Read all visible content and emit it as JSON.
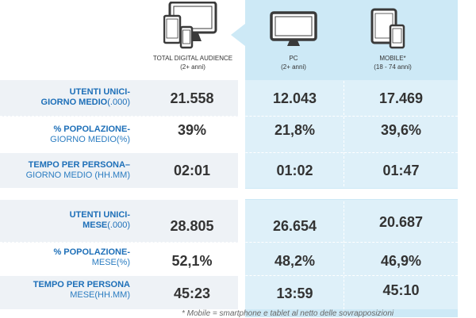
{
  "columns": {
    "total": {
      "title": "TOTAL DIGITAL AUDIENCE",
      "subtitle": "(2+ anni)"
    },
    "pc": {
      "title": "PC",
      "subtitle": "(2+ anni)"
    },
    "mobile": {
      "title": "MOBILE*",
      "subtitle": "(18 - 74 anni)"
    }
  },
  "rows": [
    {
      "label_line1": "UTENTI UNICI-",
      "label_line2": "GIORNO MEDIO",
      "label_suffix": "(.000)",
      "total": "21.558",
      "pc": "12.043",
      "mobile": "17.469"
    },
    {
      "label_line1": "% POPOLAZIONE-",
      "label_line2": "GIORNO MEDIO(%)",
      "label_suffix": "",
      "total": "39%",
      "pc": "21,8%",
      "mobile": "39,6%"
    },
    {
      "label_line1": "TEMPO PER PERSONA–",
      "label_line2": "GIORNO MEDIO (HH.MM)",
      "label_suffix": "",
      "total": "02:01",
      "pc": "01:02",
      "mobile": "01:47"
    },
    {
      "label_line1": "UTENTI UNICI-",
      "label_line2": "MESE",
      "label_suffix": "(.000)",
      "total": "28.805",
      "pc": "26.654",
      "mobile": "20.687"
    },
    {
      "label_line1": "% POPOLAZIONE-",
      "label_line2": "MESE(%)",
      "label_suffix": "",
      "total": "52,1%",
      "pc": "48,2%",
      "mobile": "46,9%"
    },
    {
      "label_line1": "TEMPO PER PERSONA",
      "label_line2": "MESE(HH.MM)",
      "label_suffix": "",
      "total": "45:23",
      "pc": "13:59",
      "mobile": "45:10"
    }
  ],
  "footnote": "* Mobile = smartphone e tablet al netto delle sovrapposizioni",
  "icons": {
    "total": "devices-icon",
    "pc": "monitor-icon",
    "mobile": "tablet-phone-icon"
  },
  "colors": {
    "panel": "#cde9f6",
    "label": "#1d6fb8",
    "value": "#333333"
  }
}
